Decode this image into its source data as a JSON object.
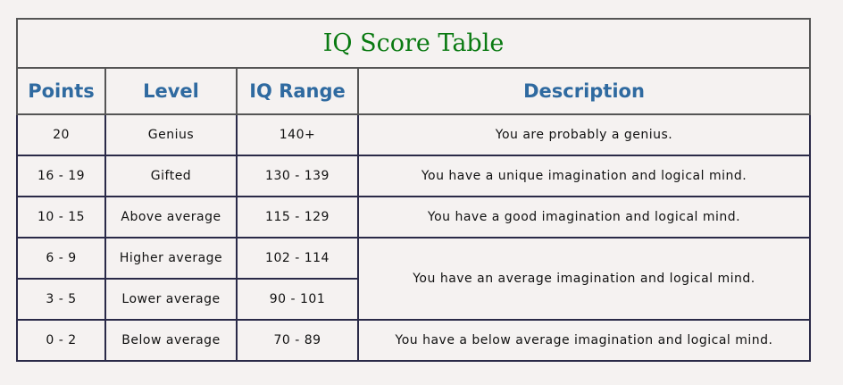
{
  "title": "IQ Score Table",
  "headers": [
    "Points",
    "Level",
    "IQ Range",
    "Description"
  ],
  "rows": [
    {
      "points": "20",
      "level": "Genius",
      "range": "140+",
      "description": "You are probably a genius."
    },
    {
      "points": "16 - 19",
      "level": "Gifted",
      "range": "130 - 139",
      "description": "You have a unique imagination and logical mind."
    },
    {
      "points": "10 - 15",
      "level": "Above average",
      "range": "115 - 129",
      "description": "You have a good imagination and logical mind."
    },
    {
      "points": "6 - 9",
      "level": "Higher average",
      "range": "102 - 114",
      "description": "You have an average imagination and logical mind."
    },
    {
      "points": "3 - 5",
      "level": "Lower average",
      "range": "90 - 101"
    },
    {
      "points": "0 - 2",
      "level": "Below average",
      "range": "70 - 89",
      "description": "You have a below average imagination and logical mind."
    }
  ]
}
